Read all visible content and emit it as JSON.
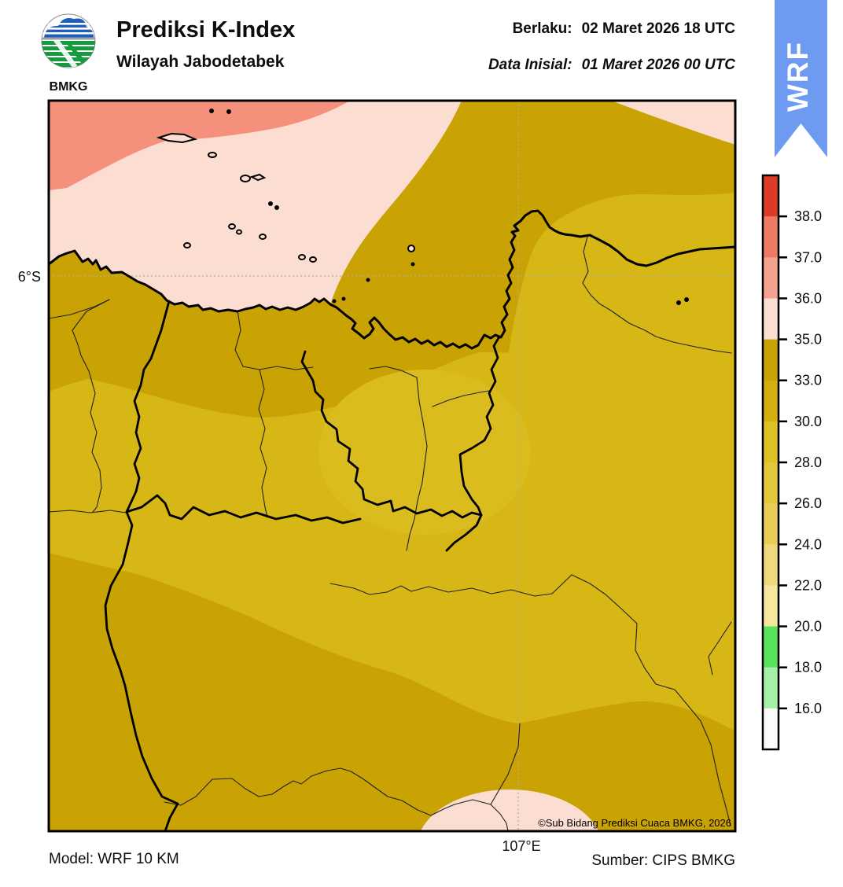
{
  "header": {
    "logo_text": "BMKG",
    "title": "Prediksi K-Index",
    "subtitle": "Wilayah Jabodetabek",
    "valid_label": "Berlaku:",
    "valid_value": "02 Maret 2026 18 UTC",
    "init_label": "Data Inisial:",
    "init_value": "01 Maret 2026 00 UTC",
    "ribbon_label": "WRF"
  },
  "map": {
    "lat_label": "6°S",
    "lon_label": "107°E",
    "copyright": "©Sub Bidang Prediksi Cuaca BMKG, 2026"
  },
  "legend": {
    "tick_labels": [
      "38.0",
      "37.0",
      "36.0",
      "35.0",
      "33.0",
      "30.0",
      "28.0",
      "26.0",
      "24.0",
      "22.0",
      "20.0",
      "18.0",
      "16.0"
    ],
    "segment_colors": [
      "#DC3B28",
      "#EE7A64",
      "#F4A28F",
      "#FBDED2",
      "#C9A203",
      "#D2AF0E",
      "#DCC125",
      "#E2C63B",
      "#E9CD55",
      "#EFD97C",
      "#F5E79D",
      "#57E35C",
      "#A7F0A7",
      "#FBFBFB"
    ]
  },
  "footer": {
    "model": "Model: WRF 10 KM",
    "source": "Sumber: CIPS BMKG"
  },
  "colors": {
    "ribbon_blue": "#6E9AF2",
    "sea_pink": "#FBDDD1",
    "salmon": "#F5907D",
    "dark_gold": "#C9A203",
    "medium_gold": "#D7B716",
    "light_gold": "#DBBC1F"
  }
}
